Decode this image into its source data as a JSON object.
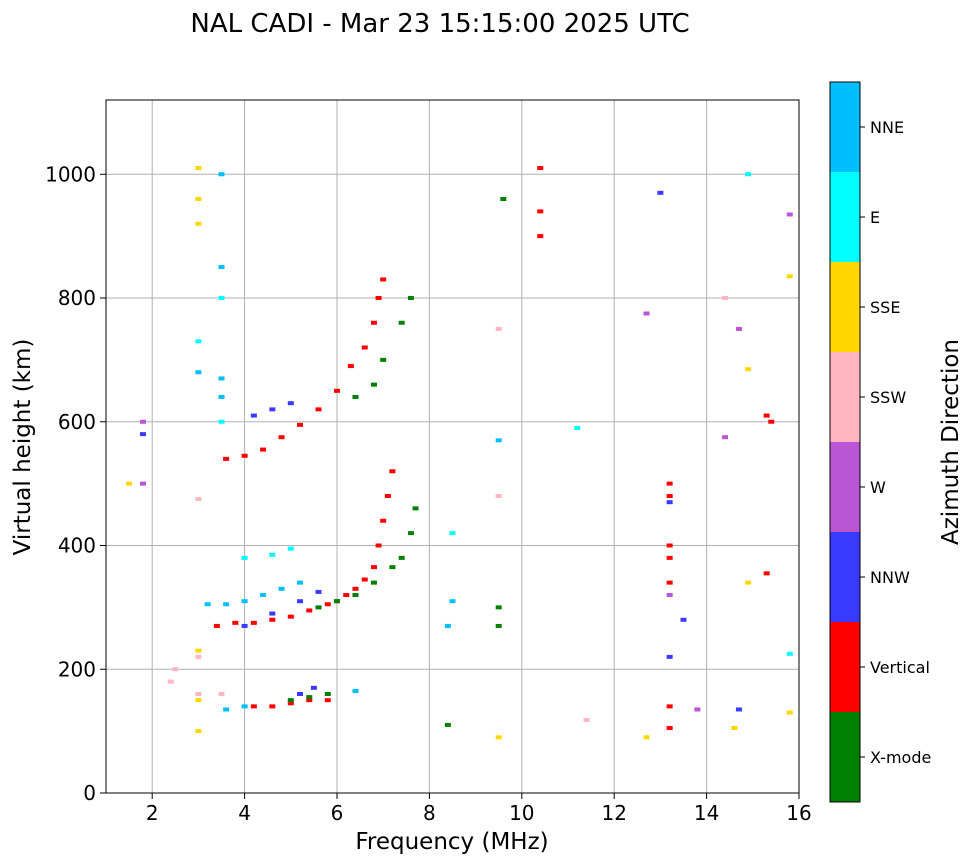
{
  "chart_data": {
    "type": "scatter",
    "title": "NAL CADI - Mar 23 15:15:00 2025 UTC",
    "xlabel": "Frequency (MHz)",
    "ylabel": "Virtual height (km)",
    "xlim": [
      1,
      16
    ],
    "ylim": [
      0,
      1120
    ],
    "xticks": [
      2,
      4,
      6,
      8,
      10,
      12,
      14,
      16
    ],
    "yticks": [
      0,
      200,
      400,
      600,
      800,
      1000
    ],
    "xtick_labels": [
      "2",
      "4",
      "6",
      "8",
      "10",
      "12",
      "14",
      "16"
    ],
    "ytick_labels": [
      "0",
      "200",
      "400",
      "600",
      "800",
      "1000"
    ],
    "grid": true,
    "colorbar": {
      "label": "Azimuth Direction",
      "categories": [
        {
          "name": "X-mode",
          "color": "#008000"
        },
        {
          "name": "Vertical",
          "color": "#ff0000"
        },
        {
          "name": "NNW",
          "color": "#3a3aff"
        },
        {
          "name": "W",
          "color": "#ba55d3"
        },
        {
          "name": "SSW",
          "color": "#ffb6c1"
        },
        {
          "name": "SSE",
          "color": "#ffd700"
        },
        {
          "name": "E",
          "color": "#00ffff"
        },
        {
          "name": "NNE",
          "color": "#00bfff"
        }
      ]
    },
    "series": [
      {
        "name": "Vertical",
        "color": "#ff0000",
        "points": [
          [
            4.2,
            140
          ],
          [
            4.6,
            140
          ],
          [
            5.0,
            145
          ],
          [
            5.4,
            150
          ],
          [
            5.8,
            150
          ],
          [
            3.4,
            270
          ],
          [
            3.8,
            275
          ],
          [
            4.2,
            275
          ],
          [
            4.6,
            280
          ],
          [
            5.0,
            285
          ],
          [
            5.4,
            295
          ],
          [
            5.8,
            305
          ],
          [
            6.0,
            310
          ],
          [
            6.2,
            320
          ],
          [
            6.4,
            330
          ],
          [
            6.6,
            345
          ],
          [
            6.8,
            365
          ],
          [
            6.9,
            400
          ],
          [
            7.0,
            440
          ],
          [
            7.1,
            480
          ],
          [
            7.2,
            520
          ],
          [
            3.6,
            540
          ],
          [
            4.0,
            545
          ],
          [
            4.4,
            555
          ],
          [
            4.8,
            575
          ],
          [
            5.2,
            595
          ],
          [
            5.6,
            620
          ],
          [
            6.0,
            650
          ],
          [
            6.3,
            690
          ],
          [
            6.6,
            720
          ],
          [
            6.8,
            760
          ],
          [
            6.9,
            800
          ],
          [
            7.0,
            830
          ],
          [
            10.4,
            1010
          ],
          [
            10.4,
            940
          ],
          [
            10.4,
            900
          ],
          [
            13.2,
            500
          ],
          [
            13.2,
            480
          ],
          [
            13.2,
            400
          ],
          [
            13.2,
            380
          ],
          [
            13.2,
            340
          ],
          [
            13.2,
            140
          ],
          [
            13.2,
            105
          ],
          [
            15.3,
            610
          ],
          [
            15.4,
            600
          ],
          [
            15.3,
            355
          ]
        ]
      },
      {
        "name": "X-mode",
        "color": "#008000",
        "points": [
          [
            5.0,
            150
          ],
          [
            5.4,
            155
          ],
          [
            5.8,
            160
          ],
          [
            5.6,
            300
          ],
          [
            6.0,
            310
          ],
          [
            6.4,
            320
          ],
          [
            6.8,
            340
          ],
          [
            7.2,
            365
          ],
          [
            7.4,
            380
          ],
          [
            7.6,
            420
          ],
          [
            7.7,
            460
          ],
          [
            6.4,
            640
          ],
          [
            6.8,
            660
          ],
          [
            7.0,
            700
          ],
          [
            7.4,
            760
          ],
          [
            7.6,
            800
          ],
          [
            8.4,
            110
          ],
          [
            9.5,
            300
          ],
          [
            9.5,
            270
          ],
          [
            9.6,
            960
          ]
        ]
      },
      {
        "name": "NNW",
        "color": "#3a3aff",
        "points": [
          [
            5.2,
            160
          ],
          [
            5.5,
            170
          ],
          [
            4.0,
            270
          ],
          [
            4.6,
            290
          ],
          [
            5.2,
            310
          ],
          [
            5.6,
            325
          ],
          [
            4.2,
            610
          ],
          [
            4.6,
            620
          ],
          [
            5.0,
            630
          ],
          [
            1.8,
            580
          ],
          [
            13.2,
            470
          ],
          [
            13.2,
            220
          ],
          [
            13.5,
            280
          ],
          [
            13.0,
            970
          ],
          [
            14.7,
            135
          ]
        ]
      },
      {
        "name": "W",
        "color": "#ba55d3",
        "points": [
          [
            1.8,
            600
          ],
          [
            1.8,
            500
          ],
          [
            13.2,
            320
          ],
          [
            12.7,
            775
          ],
          [
            14.7,
            750
          ],
          [
            14.4,
            575
          ],
          [
            15.8,
            935
          ],
          [
            13.8,
            135
          ]
        ]
      },
      {
        "name": "SSW",
        "color": "#ffb6c1",
        "points": [
          [
            2.4,
            180
          ],
          [
            2.5,
            200
          ],
          [
            3.0,
            160
          ],
          [
            3.0,
            220
          ],
          [
            3.0,
            475
          ],
          [
            3.5,
            160
          ],
          [
            9.5,
            750
          ],
          [
            9.5,
            480
          ],
          [
            11.4,
            118
          ],
          [
            14.4,
            800
          ]
        ]
      },
      {
        "name": "SSE",
        "color": "#ffd700",
        "points": [
          [
            3.0,
            100
          ],
          [
            3.0,
            150
          ],
          [
            3.0,
            230
          ],
          [
            3.0,
            920
          ],
          [
            3.0,
            960
          ],
          [
            3.0,
            1010
          ],
          [
            1.5,
            500
          ],
          [
            12.7,
            90
          ],
          [
            14.9,
            685
          ],
          [
            14.9,
            340
          ],
          [
            15.8,
            835
          ],
          [
            15.8,
            130
          ],
          [
            14.6,
            105
          ],
          [
            9.5,
            90
          ]
        ]
      },
      {
        "name": "E",
        "color": "#00ffff",
        "points": [
          [
            4.0,
            380
          ],
          [
            4.6,
            385
          ],
          [
            5.0,
            395
          ],
          [
            3.5,
            600
          ],
          [
            3.5,
            800
          ],
          [
            3.0,
            730
          ],
          [
            11.2,
            590
          ],
          [
            14.9,
            1000
          ],
          [
            8.5,
            420
          ],
          [
            15.8,
            225
          ]
        ]
      },
      {
        "name": "NNE",
        "color": "#00bfff",
        "points": [
          [
            3.6,
            135
          ],
          [
            4.0,
            140
          ],
          [
            6.4,
            165
          ],
          [
            3.2,
            305
          ],
          [
            3.6,
            305
          ],
          [
            4.0,
            310
          ],
          [
            4.4,
            320
          ],
          [
            4.8,
            330
          ],
          [
            5.2,
            340
          ],
          [
            3.5,
            1000
          ],
          [
            3.5,
            850
          ],
          [
            3.5,
            670
          ],
          [
            3.0,
            680
          ],
          [
            3.5,
            640
          ],
          [
            8.4,
            270
          ],
          [
            8.5,
            310
          ],
          [
            9.5,
            570
          ]
        ]
      }
    ]
  }
}
